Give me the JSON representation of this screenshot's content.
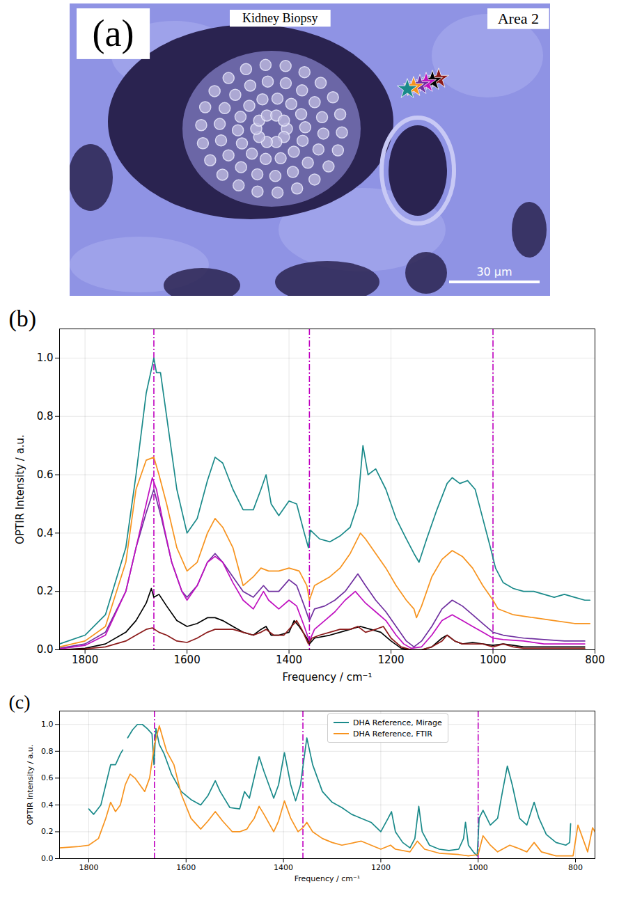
{
  "chart_data": [
    {
      "type": "image",
      "panel": "(a)",
      "title": "Kidney Biopsy",
      "annotations": [
        "Area 2"
      ],
      "scale_bar": "30 μm"
    },
    {
      "type": "line",
      "panel": "(b)",
      "x_label": "Frequency / cm⁻¹",
      "y_label": "OPTIR Intensity / a.u.",
      "xlim": [
        1850,
        800
      ],
      "xticks": [
        1800,
        1600,
        1400,
        1200,
        1000,
        800
      ],
      "ylim": [
        0,
        1.1
      ],
      "yticks": [
        {
          "value": 0,
          "label": "0.0"
        },
        {
          "value": 0.2,
          "label": "0.2"
        },
        {
          "value": 0.4,
          "label": "0.4"
        },
        {
          "value": 0.6,
          "label": "0.6"
        },
        {
          "value": 0.8,
          "label": "0.8"
        },
        {
          "value": 1.0,
          "label": "1.0"
        }
      ],
      "grid": true,
      "vlines": [
        1665,
        1360,
        1000
      ],
      "series": [
        {
          "color": "#1a8a8a",
          "x": [
            1850,
            1800,
            1760,
            1720,
            1700,
            1680,
            1665,
            1660,
            1652,
            1640,
            1620,
            1600,
            1580,
            1560,
            1545,
            1530,
            1510,
            1490,
            1470,
            1455,
            1445,
            1435,
            1420,
            1400,
            1385,
            1370,
            1362,
            1358,
            1340,
            1320,
            1300,
            1280,
            1265,
            1255,
            1245,
            1230,
            1210,
            1190,
            1170,
            1155,
            1145,
            1130,
            1110,
            1090,
            1080,
            1065,
            1050,
            1035,
            1020,
            1005,
            995,
            980,
            960,
            940,
            920,
            900,
            880,
            860,
            840,
            820,
            810
          ],
          "values": [
            0.02,
            0.05,
            0.12,
            0.35,
            0.6,
            0.88,
            1.0,
            0.95,
            0.95,
            0.8,
            0.55,
            0.4,
            0.45,
            0.58,
            0.66,
            0.64,
            0.55,
            0.48,
            0.48,
            0.55,
            0.6,
            0.5,
            0.46,
            0.51,
            0.5,
            0.4,
            0.35,
            0.41,
            0.38,
            0.37,
            0.39,
            0.42,
            0.5,
            0.7,
            0.6,
            0.62,
            0.55,
            0.45,
            0.38,
            0.33,
            0.3,
            0.38,
            0.48,
            0.57,
            0.59,
            0.57,
            0.58,
            0.55,
            0.45,
            0.35,
            0.28,
            0.23,
            0.21,
            0.2,
            0.2,
            0.19,
            0.18,
            0.19,
            0.18,
            0.17,
            0.17
          ]
        },
        {
          "color": "#f7931e",
          "x": [
            1850,
            1800,
            1760,
            1720,
            1700,
            1680,
            1665,
            1655,
            1640,
            1620,
            1600,
            1580,
            1560,
            1545,
            1530,
            1510,
            1490,
            1470,
            1455,
            1440,
            1420,
            1400,
            1380,
            1365,
            1360,
            1350,
            1320,
            1300,
            1280,
            1260,
            1250,
            1230,
            1210,
            1190,
            1170,
            1155,
            1150,
            1140,
            1120,
            1100,
            1080,
            1060,
            1040,
            1020,
            1000,
            990,
            960,
            920,
            880,
            840,
            810
          ],
          "values": [
            0.01,
            0.03,
            0.08,
            0.3,
            0.55,
            0.65,
            0.66,
            0.6,
            0.5,
            0.35,
            0.27,
            0.3,
            0.4,
            0.45,
            0.42,
            0.35,
            0.22,
            0.25,
            0.28,
            0.27,
            0.27,
            0.28,
            0.27,
            0.22,
            0.17,
            0.22,
            0.25,
            0.28,
            0.33,
            0.4,
            0.38,
            0.33,
            0.28,
            0.22,
            0.17,
            0.14,
            0.11,
            0.15,
            0.25,
            0.31,
            0.34,
            0.32,
            0.28,
            0.22,
            0.17,
            0.14,
            0.12,
            0.11,
            0.1,
            0.09,
            0.09
          ]
        },
        {
          "color": "#7030a0",
          "x": [
            1850,
            1800,
            1760,
            1720,
            1700,
            1680,
            1665,
            1650,
            1630,
            1610,
            1600,
            1580,
            1560,
            1545,
            1530,
            1510,
            1490,
            1470,
            1450,
            1440,
            1420,
            1400,
            1385,
            1370,
            1360,
            1350,
            1330,
            1310,
            1290,
            1265,
            1250,
            1230,
            1210,
            1190,
            1170,
            1155,
            1140,
            1120,
            1100,
            1080,
            1060,
            1040,
            1020,
            1000,
            980,
            940,
            900,
            860,
            820
          ],
          "values": [
            0.005,
            0.02,
            0.06,
            0.2,
            0.35,
            0.47,
            0.55,
            0.45,
            0.3,
            0.2,
            0.18,
            0.22,
            0.3,
            0.33,
            0.3,
            0.25,
            0.2,
            0.18,
            0.22,
            0.2,
            0.2,
            0.24,
            0.22,
            0.15,
            0.1,
            0.14,
            0.15,
            0.17,
            0.2,
            0.26,
            0.22,
            0.17,
            0.13,
            0.08,
            0.03,
            0.01,
            0.03,
            0.08,
            0.14,
            0.17,
            0.15,
            0.12,
            0.09,
            0.06,
            0.05,
            0.04,
            0.035,
            0.03,
            0.03
          ]
        },
        {
          "color": "#c010c0",
          "x": [
            1850,
            1800,
            1760,
            1720,
            1700,
            1680,
            1668,
            1660,
            1645,
            1630,
            1610,
            1600,
            1580,
            1560,
            1545,
            1530,
            1510,
            1490,
            1470,
            1450,
            1440,
            1420,
            1400,
            1385,
            1370,
            1360,
            1350,
            1330,
            1310,
            1290,
            1270,
            1250,
            1230,
            1210,
            1190,
            1175,
            1160,
            1140,
            1120,
            1100,
            1080,
            1060,
            1040,
            1020,
            1000,
            980,
            940,
            900,
            860,
            820
          ],
          "values": [
            0.003,
            0.015,
            0.05,
            0.2,
            0.35,
            0.5,
            0.59,
            0.55,
            0.42,
            0.3,
            0.2,
            0.17,
            0.22,
            0.3,
            0.32,
            0.3,
            0.23,
            0.17,
            0.14,
            0.2,
            0.17,
            0.14,
            0.17,
            0.15,
            0.08,
            0.03,
            0.07,
            0.1,
            0.13,
            0.17,
            0.2,
            0.16,
            0.13,
            0.1,
            0.05,
            0.02,
            0.005,
            0.01,
            0.05,
            0.1,
            0.12,
            0.1,
            0.08,
            0.06,
            0.04,
            0.035,
            0.03,
            0.02,
            0.02,
            0.02
          ]
        },
        {
          "color": "#000000",
          "x": [
            1850,
            1800,
            1760,
            1720,
            1700,
            1680,
            1670,
            1665,
            1655,
            1640,
            1620,
            1600,
            1580,
            1560,
            1545,
            1530,
            1510,
            1490,
            1470,
            1455,
            1445,
            1435,
            1420,
            1400,
            1390,
            1380,
            1365,
            1360,
            1350,
            1320,
            1300,
            1280,
            1260,
            1240,
            1220,
            1200,
            1180,
            1160,
            1140,
            1120,
            1100,
            1090,
            1075,
            1060,
            1040,
            1020,
            1000,
            980,
            960,
            940,
            900,
            860,
            820
          ],
          "values": [
            0,
            0.005,
            0.02,
            0.06,
            0.1,
            0.16,
            0.21,
            0.18,
            0.19,
            0.15,
            0.1,
            0.08,
            0.09,
            0.11,
            0.11,
            0.1,
            0.08,
            0.06,
            0.05,
            0.07,
            0.08,
            0.05,
            0.05,
            0.06,
            0.1,
            0.08,
            0.04,
            0.02,
            0.04,
            0.05,
            0.06,
            0.07,
            0.08,
            0.07,
            0.06,
            0.03,
            0.005,
            0,
            0,
            0.01,
            0.04,
            0.05,
            0.03,
            0.02,
            0.025,
            0.02,
            0.015,
            0.02,
            0.015,
            0.01,
            0.01,
            0.01,
            0.01
          ]
        },
        {
          "color": "#8b1a1a",
          "x": [
            1850,
            1800,
            1760,
            1720,
            1700,
            1680,
            1668,
            1655,
            1640,
            1620,
            1600,
            1580,
            1560,
            1545,
            1530,
            1510,
            1490,
            1470,
            1455,
            1445,
            1430,
            1410,
            1395,
            1385,
            1375,
            1362,
            1355,
            1340,
            1320,
            1300,
            1280,
            1265,
            1250,
            1230,
            1215,
            1200,
            1180,
            1160,
            1140,
            1120,
            1100,
            1090,
            1075,
            1060,
            1040,
            1020,
            1000,
            980,
            960,
            940,
            900,
            860,
            820
          ],
          "values": [
            0,
            0.003,
            0.01,
            0.03,
            0.05,
            0.07,
            0.075,
            0.06,
            0.05,
            0.03,
            0.025,
            0.04,
            0.06,
            0.07,
            0.07,
            0.07,
            0.06,
            0.05,
            0.06,
            0.07,
            0.05,
            0.05,
            0.08,
            0.1,
            0.07,
            0.02,
            0.04,
            0.05,
            0.06,
            0.07,
            0.07,
            0.08,
            0.06,
            0.07,
            0.08,
            0.04,
            0.01,
            0,
            0,
            0.01,
            0.03,
            0.05,
            0.03,
            0.02,
            0.02,
            0.02,
            0.01,
            0.02,
            0.01,
            0.005,
            0.005,
            0.005,
            0.005
          ]
        }
      ]
    },
    {
      "type": "line",
      "panel": "(c)",
      "x_label": "Frequency / cm⁻¹",
      "y_label": "OPTIR Intensity / a.u.",
      "xlim": [
        1860,
        760
      ],
      "xticks": [
        1800,
        1600,
        1400,
        1200,
        1000,
        800
      ],
      "ylim": [
        0,
        1.1
      ],
      "yticks": [
        {
          "value": 0,
          "label": "0.0"
        },
        {
          "value": 0.2,
          "label": "0.2"
        },
        {
          "value": 0.4,
          "label": "0.4"
        },
        {
          "value": 0.6,
          "label": "0.6"
        },
        {
          "value": 0.8,
          "label": "0.8"
        },
        {
          "value": 1.0,
          "label": "1.0"
        }
      ],
      "grid": true,
      "legend": "top",
      "vlines": [
        1665,
        1360,
        1000
      ],
      "series": [
        {
          "name": "DHA Reference, Mirage",
          "color": "#1a8a8a",
          "x": [
            1800,
            1790,
            1775,
            1765,
            1755,
            1745,
            1735,
            1730,
            1725,
            1720,
            1710,
            1700,
            1690,
            1680,
            1670,
            1666,
            1662,
            1655,
            1645,
            1630,
            1610,
            1590,
            1570,
            1555,
            1540,
            1530,
            1510,
            1490,
            1480,
            1470,
            1450,
            1440,
            1420,
            1410,
            1398,
            1385,
            1375,
            1365,
            1352,
            1340,
            1320,
            1300,
            1280,
            1260,
            1240,
            1220,
            1200,
            1185,
            1178,
            1170,
            1155,
            1140,
            1130,
            1122,
            1115,
            1100,
            1080,
            1060,
            1040,
            1030,
            1026,
            1020,
            1010,
            1002,
            998,
            990,
            975,
            960,
            950,
            940,
            930,
            915,
            900,
            885,
            875,
            860,
            840,
            820,
            812,
            810
          ],
          "values": [
            0.37,
            0.33,
            0.4,
            0.55,
            0.7,
            0.7,
            0.78,
            0.81,
            null,
            0.9,
            0.96,
            1.0,
            1.0,
            0.97,
            0.93,
            0.7,
            0.97,
            0.85,
            0.78,
            0.63,
            0.5,
            0.44,
            0.4,
            0.47,
            0.58,
            0.5,
            0.38,
            0.37,
            0.5,
            0.45,
            0.76,
            0.65,
            0.45,
            0.55,
            0.79,
            0.55,
            0.43,
            0.55,
            0.9,
            0.7,
            0.5,
            0.42,
            0.38,
            0.33,
            0.3,
            0.27,
            0.2,
            0.3,
            0.35,
            0.2,
            0.12,
            0.08,
            0.15,
            0.39,
            0.2,
            0.1,
            0.07,
            0.06,
            0.07,
            0.15,
            0.27,
            0.1,
            0.05,
            0.02,
            0.3,
            0.36,
            0.25,
            0.3,
            0.5,
            0.69,
            0.55,
            0.3,
            0.25,
            0.42,
            0.3,
            0.18,
            0.12,
            0.1,
            0.12,
            0.26
          ]
        },
        {
          "name": "DHA Reference, FTIR",
          "color": "#f7931e",
          "x": [
            1860,
            1820,
            1800,
            1780,
            1765,
            1755,
            1745,
            1735,
            1725,
            1715,
            1705,
            1695,
            1685,
            1675,
            1665,
            1655,
            1648,
            1640,
            1625,
            1610,
            1590,
            1570,
            1555,
            1540,
            1525,
            1505,
            1490,
            1475,
            1470,
            1460,
            1450,
            1440,
            1420,
            1410,
            1398,
            1385,
            1370,
            1360,
            1352,
            1340,
            1320,
            1300,
            1280,
            1240,
            1220,
            1200,
            1180,
            1170,
            1140,
            1125,
            1110,
            1080,
            1040,
            1020,
            1000,
            990,
            975,
            960,
            935,
            920,
            900,
            885,
            870,
            840,
            820,
            805,
            795,
            785,
            775,
            765,
            760
          ],
          "values": [
            0.08,
            0.09,
            0.1,
            0.15,
            0.3,
            0.42,
            0.35,
            0.4,
            0.55,
            0.63,
            0.6,
            0.55,
            0.5,
            0.6,
            0.85,
            0.99,
            0.9,
            0.8,
            0.7,
            0.48,
            0.3,
            0.22,
            0.28,
            0.35,
            0.28,
            0.2,
            0.2,
            0.22,
            0.25,
            0.3,
            0.39,
            0.33,
            0.2,
            0.28,
            0.43,
            0.3,
            0.2,
            0.23,
            0.27,
            0.2,
            0.15,
            0.12,
            0.1,
            0.13,
            0.1,
            0.07,
            0.1,
            0.07,
            0.05,
            0.13,
            0.07,
            0.04,
            0.03,
            0.02,
            0.03,
            0.17,
            0.1,
            0.05,
            0.1,
            0.08,
            0.05,
            0.12,
            0.05,
            0.02,
            0.02,
            0.02,
            0.25,
            0.15,
            0.05,
            0.23,
            0.2
          ]
        }
      ]
    }
  ]
}
